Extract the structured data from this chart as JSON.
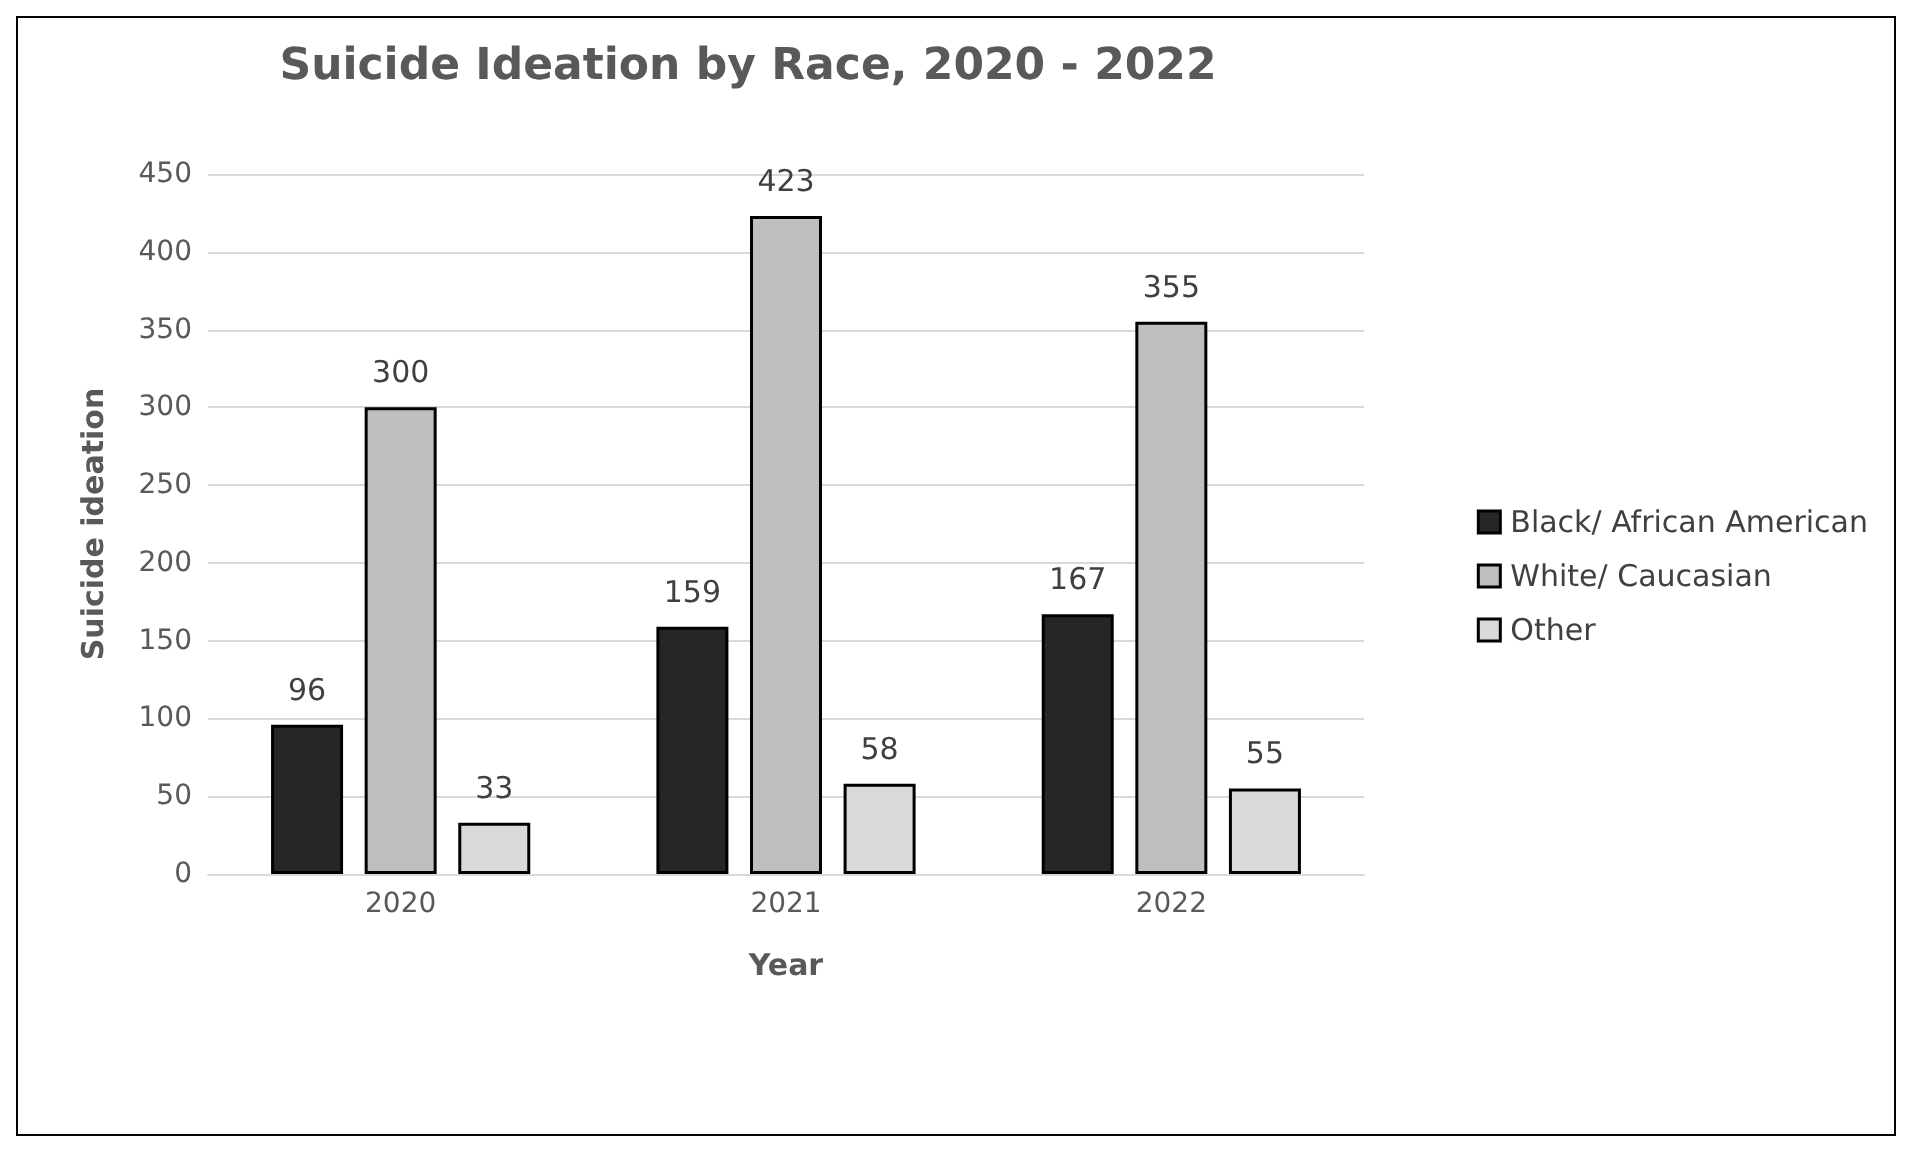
{
  "chart_data": {
    "type": "bar",
    "title": "Suicide Ideation by Race, 2020 - 2022",
    "xlabel": "Year",
    "ylabel": "Suicide ideation",
    "categories": [
      "2020",
      "2021",
      "2022"
    ],
    "series": [
      {
        "name": "Black/ African American",
        "color": "#262626",
        "values": [
          96,
          159,
          167
        ]
      },
      {
        "name": "White/ Caucasian",
        "color": "#bfbfbf",
        "values": [
          300,
          423,
          355
        ]
      },
      {
        "name": "Other",
        "color": "#d9d9d9",
        "values": [
          33,
          58,
          55
        ]
      }
    ],
    "ylim": [
      0,
      450
    ],
    "yticks": [
      0,
      50,
      100,
      150,
      200,
      250,
      300,
      350,
      400,
      450
    ],
    "grid": "y",
    "legend": "right",
    "data_labels": true
  }
}
